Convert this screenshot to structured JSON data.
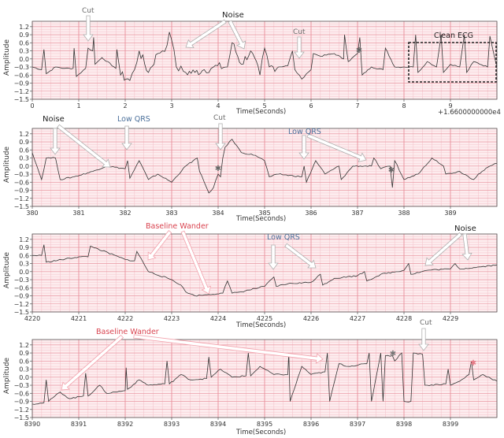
{
  "figure": {
    "ylabel": "Amplitude",
    "xlabel": "Time(Seconds)",
    "offset_label": "+1.6600000000e4",
    "yticks": [
      "1.2",
      "0.9",
      "0.6",
      "0.3",
      "0.0",
      "−0.3",
      "−0.6",
      "−0.9",
      "−1.2",
      "−1.5"
    ],
    "colors": {
      "background": "#fdecee",
      "major_grid": "#e8909c",
      "minor_grid": "#f5c6cd",
      "signal": "#333333",
      "annotation_gray": "#6b6b6b",
      "annotation_blue": "#4a6f9a",
      "annotation_red": "#d9434f",
      "arrow_fill": "#ffffff",
      "arrow_stroke": "#bdbdbd"
    }
  },
  "panels": [
    {
      "xticks": [
        "0",
        "1",
        "2",
        "3",
        "4",
        "5",
        "6",
        "7",
        "8",
        "9"
      ],
      "show_offset": true,
      "annotations": [
        {
          "text": "Cut",
          "color": "gray"
        },
        {
          "text": "Noise",
          "color": "black"
        },
        {
          "text": "Cut",
          "color": "gray"
        },
        {
          "text": "Clean ECG",
          "color": "black"
        }
      ]
    },
    {
      "xticks": [
        "380",
        "381",
        "382",
        "383",
        "384",
        "385",
        "386",
        "387",
        "388",
        "389"
      ],
      "show_offset": false,
      "annotations": [
        {
          "text": "Noise",
          "color": "black"
        },
        {
          "text": "Low QRS",
          "color": "blue"
        },
        {
          "text": "Cut",
          "color": "gray"
        },
        {
          "text": "Low QRS",
          "color": "blue"
        }
      ]
    },
    {
      "xticks": [
        "4220",
        "4221",
        "4222",
        "4223",
        "4224",
        "4225",
        "4226",
        "4227",
        "4228",
        "4229"
      ],
      "show_offset": false,
      "annotations": [
        {
          "text": "Baseline Wander",
          "color": "red"
        },
        {
          "text": "Low QRS",
          "color": "blue"
        },
        {
          "text": "Noise",
          "color": "black"
        }
      ]
    },
    {
      "xticks": [
        "8390",
        "8391",
        "8392",
        "8393",
        "8394",
        "8395",
        "8396",
        "8397",
        "8398",
        "8399"
      ],
      "show_offset": false,
      "annotations": [
        {
          "text": "Baseline Wander",
          "color": "red"
        },
        {
          "text": "Cut",
          "color": "gray"
        }
      ]
    }
  ],
  "chart_data": [
    {
      "type": "line",
      "title": "",
      "xlabel": "Time(Seconds)",
      "ylabel": "Amplitude",
      "x_offset": 16600,
      "xlim": [
        0,
        10
      ],
      "ylim": [
        -1.5,
        1.4
      ],
      "grid": true,
      "annotations": [
        "Cut (~1.2s)",
        "Noise (~3.2s, ~4.6s)",
        "Cut (~5.8s)",
        "Clean ECG (8.1–10s, dashed box)"
      ],
      "series": [
        {
          "name": "ECG",
          "x": [
            0,
            0.2,
            0.25,
            0.3,
            0.5,
            0.7,
            0.88,
            0.9,
            0.95,
            1.15,
            1.2,
            1.3,
            1.32,
            1.35,
            1.5,
            1.8,
            1.82,
            1.9,
            2.1,
            2.2,
            2.3,
            2.5,
            2.7,
            2.9,
            2.95,
            3.0,
            3.1,
            3.3,
            3.5,
            3.7,
            3.9,
            4.2,
            4.3,
            4.5,
            4.7,
            4.9,
            5.0,
            5.1,
            5.3,
            5.5,
            5.6,
            5.65,
            5.8,
            5.9,
            6.0,
            6.05,
            6.2,
            6.5,
            6.7,
            6.72,
            6.8,
            7.0,
            7.05,
            7.1,
            7.3,
            7.55,
            7.6,
            7.8,
            8.0,
            8.2,
            8.25,
            8.3,
            8.5,
            8.7,
            8.8,
            8.85,
            9.0,
            9.2,
            9.3,
            9.35,
            9.5,
            9.8,
            9.85,
            10.0
          ],
          "y": [
            -0.3,
            -0.4,
            0.35,
            -0.55,
            -0.3,
            -0.35,
            -0.35,
            0.4,
            -0.65,
            -0.35,
            0.4,
            0.3,
            0.8,
            -0.2,
            0.05,
            -0.35,
            0.35,
            -0.6,
            -0.8,
            -0.4,
            0.3,
            -0.5,
            0.2,
            0.5,
            1.0,
            0.7,
            -0.3,
            -0.5,
            -0.5,
            -0.4,
            -0.3,
            -0.3,
            0.6,
            -0.2,
            0.3,
            -0.6,
            0.4,
            -0.3,
            -0.3,
            -0.25,
            0.3,
            -0.4,
            -0.75,
            -0.55,
            -0.4,
            0.2,
            0.1,
            0.2,
            0.0,
            0.9,
            -0.1,
            0.2,
            0.8,
            -0.6,
            -0.3,
            -0.4,
            0.4,
            -0.3,
            -0.3,
            -0.3,
            0.9,
            -0.5,
            -0.1,
            -0.3,
            0.9,
            -0.5,
            -0.2,
            -0.3,
            0.9,
            -0.5,
            -0.1,
            -0.3,
            0.85,
            -0.3
          ]
        }
      ]
    },
    {
      "type": "line",
      "title": "",
      "xlabel": "Time(Seconds)",
      "ylabel": "Amplitude",
      "xlim": [
        380,
        390
      ],
      "ylim": [
        -1.5,
        1.4
      ],
      "grid": true,
      "annotations": [
        "Noise (~380.5s, ~381.7s)",
        "Low QRS (~382.05s)",
        "Cut (~384.1s)",
        "Low QRS (~385.85s, ~387.3s)"
      ],
      "series": [
        {
          "name": "ECG",
          "x": [
            380,
            380.2,
            380.3,
            380.5,
            380.6,
            380.9,
            381.3,
            381.6,
            382.0,
            382.05,
            382.1,
            382.3,
            382.5,
            382.7,
            383.0,
            383.3,
            383.55,
            383.6,
            383.8,
            383.9,
            384.0,
            384.05,
            384.1,
            384.15,
            384.3,
            384.5,
            384.8,
            385.0,
            385.1,
            385.3,
            385.8,
            385.85,
            385.9,
            386.1,
            386.3,
            386.6,
            386.65,
            386.9,
            387.3,
            387.35,
            387.5,
            387.7,
            387.75,
            387.8,
            388.0,
            388.3,
            388.6,
            388.7,
            388.85,
            388.9,
            389.2,
            389.5,
            389.6,
            389.85,
            390.0
          ],
          "y": [
            0.5,
            -0.5,
            0.3,
            0.3,
            -0.5,
            -0.4,
            -0.2,
            0.0,
            -0.1,
            0.2,
            -0.45,
            0.2,
            -0.5,
            -0.3,
            -0.6,
            0.0,
            0.3,
            -0.2,
            -1.0,
            -0.8,
            -0.3,
            -0.4,
            0.3,
            0.7,
            1.0,
            0.5,
            0.4,
            0.2,
            -0.4,
            -0.3,
            -0.4,
            0.0,
            -0.6,
            0.2,
            -0.3,
            0.0,
            -0.5,
            0.0,
            0.0,
            0.3,
            -0.1,
            0.0,
            -0.8,
            0.2,
            -0.5,
            -0.3,
            0.3,
            0.2,
            0.0,
            -0.3,
            -0.2,
            -0.5,
            -0.3,
            0.0,
            0.1
          ]
        }
      ]
    },
    {
      "type": "line",
      "title": "",
      "xlabel": "Time(Seconds)",
      "ylabel": "Amplitude",
      "xlim": [
        4220,
        4230
      ],
      "ylim": [
        -1.5,
        1.4
      ],
      "grid": true,
      "annotations": [
        "Baseline Wander (~4222.5s, ~4223.8s)",
        "Low QRS (~4225.2s, ~4226.2s)",
        "Noise (~4228.5s, ~4229.3s)"
      ],
      "series": [
        {
          "name": "ECG",
          "x": [
            4220,
            4220.2,
            4220.25,
            4220.3,
            4221.0,
            4221.2,
            4221.25,
            4222.0,
            4222.2,
            4222.25,
            4222.5,
            4223.0,
            4223.2,
            4223.3,
            4223.5,
            4223.8,
            4224.1,
            4224.2,
            4224.3,
            4224.5,
            4225.0,
            4225.2,
            4225.25,
            4225.5,
            4226.0,
            4226.2,
            4226.25,
            4226.5,
            4227.0,
            4227.15,
            4227.2,
            4227.5,
            4228.0,
            4228.1,
            4228.15,
            4228.5,
            4229.0,
            4229.1,
            4229.2,
            4229.5,
            4230.0
          ],
          "y": [
            0.6,
            0.6,
            1.0,
            0.35,
            0.55,
            0.55,
            0.95,
            0.45,
            0.4,
            0.75,
            0.0,
            -0.3,
            -0.5,
            -0.75,
            -0.9,
            -0.85,
            -0.8,
            -0.35,
            -0.8,
            -0.75,
            -0.55,
            -0.2,
            -0.55,
            -0.45,
            -0.4,
            -0.1,
            -0.5,
            -0.25,
            -0.15,
            0.0,
            -0.35,
            -0.1,
            0.05,
            0.3,
            -0.1,
            0.05,
            0.1,
            0.3,
            0.1,
            0.15,
            0.25
          ]
        }
      ]
    },
    {
      "type": "line",
      "title": "",
      "xlabel": "Time(Seconds)",
      "ylabel": "Amplitude",
      "xlim": [
        8390,
        8400
      ],
      "ylim": [
        -1.5,
        1.4
      ],
      "grid": true,
      "annotations": [
        "Baseline Wander (~8390.55s, ~8396.1s)",
        "Cut (~8398.4s)"
      ],
      "series": [
        {
          "name": "ECG",
          "x": [
            8390,
            8390.25,
            8390.3,
            8390.35,
            8390.6,
            8390.8,
            8391.1,
            8391.15,
            8391.2,
            8391.45,
            8391.6,
            8392.0,
            8392.02,
            8392.05,
            8392.3,
            8392.5,
            8392.85,
            8392.9,
            8392.95,
            8393.2,
            8393.4,
            8393.75,
            8393.8,
            8393.85,
            8394.05,
            8394.3,
            8394.6,
            8394.65,
            8394.7,
            8394.9,
            8395.2,
            8395.5,
            8395.52,
            8395.55,
            8395.8,
            8396.0,
            8396.3,
            8396.35,
            8396.4,
            8396.6,
            8396.8,
            8397.2,
            8397.25,
            8397.3,
            8397.5,
            8397.55,
            8397.6,
            8397.75,
            8397.8,
            8397.95,
            8398.0,
            8398.15,
            8398.2,
            8398.4,
            8398.45,
            8398.5,
            8398.9,
            8398.95,
            8399.0,
            8399.2,
            8399.4,
            8399.45,
            8399.5,
            8399.7,
            8400.0
          ],
          "y": [
            -1.0,
            -0.95,
            -0.1,
            -0.9,
            -0.55,
            -0.8,
            -0.7,
            0.15,
            -0.7,
            -0.3,
            -0.6,
            -0.5,
            0.35,
            -0.45,
            -0.1,
            -0.3,
            -0.25,
            0.6,
            -0.25,
            0.1,
            -0.1,
            -0.05,
            0.75,
            0.0,
            0.3,
            0.0,
            0.05,
            0.9,
            0.05,
            0.4,
            0.1,
            0.1,
            0.9,
            -0.9,
            0.4,
            0.1,
            0.2,
            0.9,
            -0.9,
            0.5,
            0.4,
            0.5,
            0.9,
            -0.9,
            0.9,
            -0.9,
            0.8,
            0.8,
            0.6,
            0.9,
            -0.9,
            -0.9,
            0.9,
            0.85,
            -0.3,
            -0.3,
            -0.25,
            0.3,
            -0.3,
            -0.15,
            0.1,
            0.6,
            -0.1,
            0.1,
            -0.15
          ]
        }
      ]
    }
  ]
}
